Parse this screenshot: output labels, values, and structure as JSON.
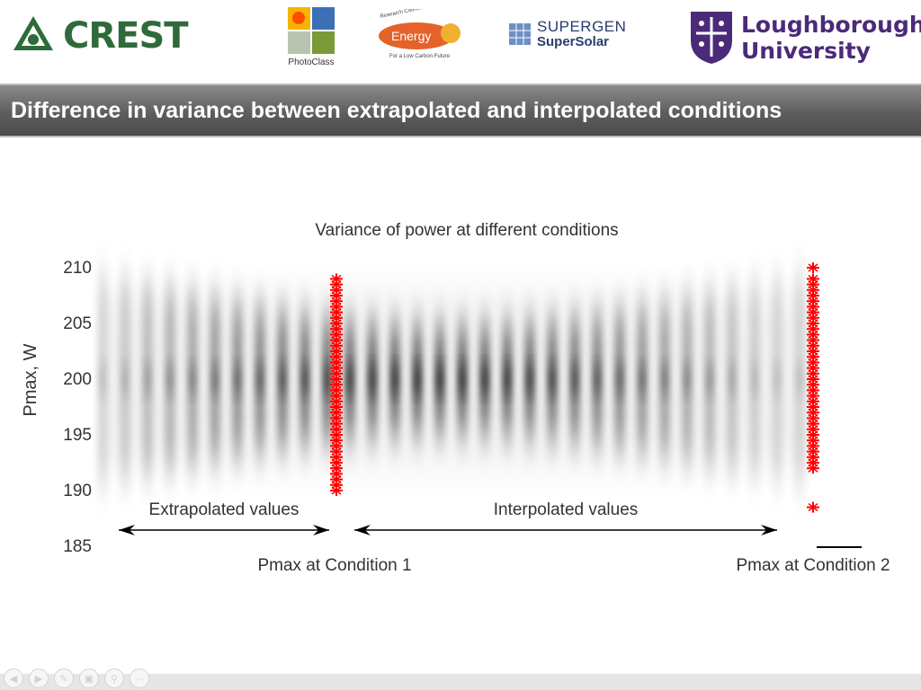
{
  "logos": {
    "crest": "CREST",
    "photoclass": "PhotoClass",
    "energy_top": "Research Councils UK",
    "energy": "Energy",
    "energy_bottom": "For a Low Carbon Future",
    "supergen_line1": "SUPERGEN",
    "supergen_line2": "SuperSolar",
    "lboro_line1": "Loughborough",
    "lboro_line2": "University"
  },
  "slide": {
    "title": "Difference in variance between extrapolated and interpolated conditions"
  },
  "colors": {
    "accent_red": "#ff0000",
    "title_bar": "#5e5e5e",
    "crest_green": "#2f6b3a",
    "lboro_purple": "#4b2a7a"
  },
  "chart_data": {
    "type": "scatter",
    "title": "Variance of power at different conditions",
    "ylabel": "Pmax, W",
    "ylim": [
      185,
      210
    ],
    "yticks": [
      "210",
      "205",
      "200",
      "195",
      "190",
      "185"
    ],
    "series": [
      {
        "name": "Pmax at Condition 1",
        "color": "#ff0000",
        "points": [
          [
            1,
            190
          ],
          [
            1,
            190.5
          ],
          [
            1,
            191
          ],
          [
            1,
            191.5
          ],
          [
            1,
            192
          ],
          [
            1,
            192.5
          ],
          [
            1,
            193
          ],
          [
            1,
            193.5
          ],
          [
            1,
            194
          ],
          [
            1,
            194.5
          ],
          [
            1,
            195
          ],
          [
            1,
            195.5
          ],
          [
            1,
            196
          ],
          [
            1,
            196.5
          ],
          [
            1,
            197
          ],
          [
            1,
            197.5
          ],
          [
            1,
            198
          ],
          [
            1,
            198.5
          ],
          [
            1,
            199
          ],
          [
            1,
            199.5
          ],
          [
            1,
            200
          ],
          [
            1,
            200.5
          ],
          [
            1,
            201
          ],
          [
            1,
            201.5
          ],
          [
            1,
            202
          ],
          [
            1,
            202.5
          ],
          [
            1,
            203
          ],
          [
            1,
            203.5
          ],
          [
            1,
            204
          ],
          [
            1,
            204.5
          ],
          [
            1,
            205
          ],
          [
            1,
            205.5
          ],
          [
            1,
            206
          ],
          [
            1,
            206.5
          ],
          [
            1,
            207
          ],
          [
            1,
            207.5
          ],
          [
            1,
            208
          ],
          [
            1,
            208.5
          ],
          [
            1,
            209
          ]
        ]
      },
      {
        "name": "Pmax at Condition 2",
        "color": "#ff0000",
        "points": [
          [
            2,
            188.5
          ],
          [
            2,
            192
          ],
          [
            2,
            192.5
          ],
          [
            2,
            193
          ],
          [
            2,
            193.5
          ],
          [
            2,
            194
          ],
          [
            2,
            194.5
          ],
          [
            2,
            195
          ],
          [
            2,
            195.5
          ],
          [
            2,
            196
          ],
          [
            2,
            196.5
          ],
          [
            2,
            197
          ],
          [
            2,
            197.5
          ],
          [
            2,
            198
          ],
          [
            2,
            198.5
          ],
          [
            2,
            199
          ],
          [
            2,
            199.5
          ],
          [
            2,
            200
          ],
          [
            2,
            200.5
          ],
          [
            2,
            201
          ],
          [
            2,
            201.5
          ],
          [
            2,
            202
          ],
          [
            2,
            202.5
          ],
          [
            2,
            203
          ],
          [
            2,
            203.5
          ],
          [
            2,
            204
          ],
          [
            2,
            204.5
          ],
          [
            2,
            205
          ],
          [
            2,
            205.5
          ],
          [
            2,
            206
          ],
          [
            2,
            206.5
          ],
          [
            2,
            207
          ],
          [
            2,
            207.5
          ],
          [
            2,
            208
          ],
          [
            2,
            208.5
          ],
          [
            2,
            209
          ],
          [
            2,
            210
          ]
        ]
      }
    ],
    "annotations": [
      {
        "text": "Extrapolated values",
        "from": 0,
        "to": 1
      },
      {
        "text": "Interpolated values",
        "from": 1,
        "to": 2
      }
    ]
  }
}
